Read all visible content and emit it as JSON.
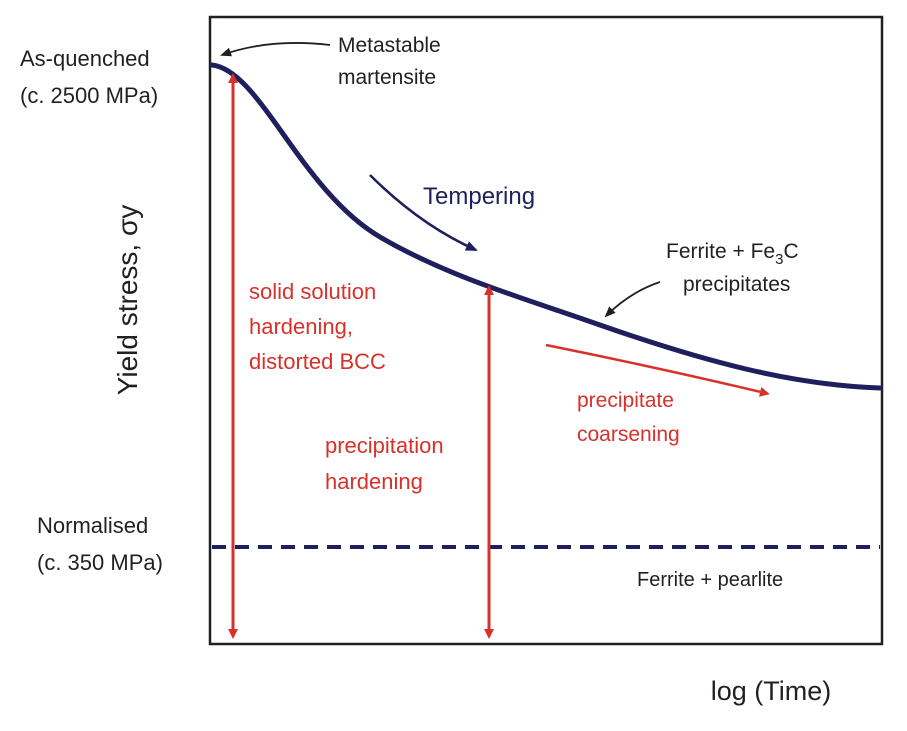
{
  "figure": {
    "y_axis_label": "Yield stress, σy",
    "x_axis_label": "log (Time)",
    "top_level": {
      "line1": "As-quenched",
      "line2": "(c. 2500 MPa)"
    },
    "bottom_level": {
      "line1": "Normalised",
      "line2": "(c. 350 MPa)"
    },
    "annotations": {
      "metastable": {
        "line1": "Metastable",
        "line2": "martensite"
      },
      "tempering": "Tempering",
      "ferrite_fe3c": {
        "line1_prefix": "Ferrite + Fe",
        "line1_sub": "3",
        "line1_suffix": "C",
        "line2": "precipitates"
      },
      "solid_solution": {
        "line1": "solid solution",
        "line2": "hardening,",
        "line3": "distorted BCC"
      },
      "precipitation": {
        "line1": "precipitation",
        "line2": "hardening"
      },
      "coarsening": {
        "line1": "precipitate",
        "line2": "coarsening"
      },
      "ferrite_pearlite": "Ferrite + pearlite"
    },
    "colors": {
      "curve": "#1f1f5e",
      "arrows_red": "#d8312a",
      "dashed_line": "#1f1f5e",
      "text": "#231f20",
      "frame": "#231f20"
    }
  }
}
